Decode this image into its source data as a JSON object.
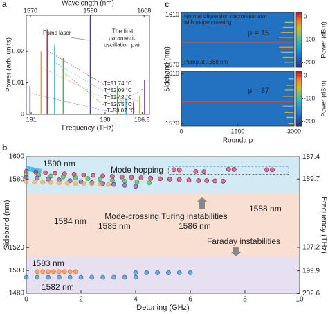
{
  "chart_data": [
    {
      "type": "stem",
      "panel": "a",
      "xlabel": "Frequency (THz)",
      "ylabel": "Power (arb. units)",
      "x2label": "Wavelength (nm)",
      "xlim": [
        191.2,
        186.2
      ],
      "xticks": [
        191,
        188,
        186.5
      ],
      "x2lim": [
        1568.6,
        1609.8
      ],
      "x2ticks": [
        1570,
        1590,
        1608
      ],
      "ylim": [
        0,
        0.0315
      ],
      "yticks": [
        0,
        0.01,
        0.02
      ],
      "annotations": [
        "The first",
        "parametric",
        "oscillation pair"
      ],
      "series": [
        {
          "name": "Pump laser",
          "color": "#3a4a8a",
          "x": [
            188.6
          ],
          "values": [
            0.031
          ]
        },
        {
          "name": "T=51.74 °C",
          "color": "#c0304a",
          "x": [
            190.35,
            186.85
          ],
          "values": [
            0.027,
            0.004
          ]
        },
        {
          "name": "T=52.09 °C",
          "color": "#39b6e0",
          "x": [
            190.05,
            187.15
          ],
          "values": [
            0.022,
            0.005
          ]
        },
        {
          "name": "T=52.42 °C",
          "color": "#f39c34",
          "x": [
            190.6,
            186.6
          ],
          "values": [
            0.02,
            0.006
          ]
        },
        {
          "name": "T=52.75 °C",
          "color": "#4caf50",
          "x": [
            189.7,
            187.5
          ],
          "values": [
            0.018,
            0.009
          ]
        },
        {
          "name": "T=53.07 °C",
          "color": "#7b4ea3",
          "x": [
            191.05,
            186.4
          ],
          "values": [
            0.009,
            0.011
          ]
        }
      ]
    },
    {
      "type": "heatmap",
      "panel": "c",
      "ylabel": "Sideband (nm)",
      "colorbar_label": "Power (dBm)",
      "notes": [
        "Normal dispersion microresonator",
        "with mode crossing"
      ],
      "mu_label": "μ = 15",
      "pump_label": "Pump at 1588 nm",
      "xlim": [
        0,
        3000
      ],
      "ylim": [
        1568,
        1612
      ],
      "yticks": [
        1610,
        1570
      ],
      "clim": [
        -220,
        20
      ],
      "cticks": [
        0,
        -100,
        -200
      ],
      "background": -170,
      "trace_wavelengths": [
        1588,
        1604,
        1600,
        1596,
        1592,
        1584,
        1580,
        1576,
        1572
      ],
      "trace_onsets": [
        0,
        2750,
        2700,
        2650,
        2600,
        2600,
        2650,
        2700,
        2750
      ],
      "trace_powers": [
        0,
        -60,
        -50,
        -40,
        -30,
        -30,
        -40,
        -50,
        -60
      ]
    },
    {
      "type": "heatmap",
      "xlabel": "Roundtrip",
      "colorbar_label": "Power (dBm)",
      "mu_label": "μ = 37",
      "xlim": [
        0,
        3000
      ],
      "xticks": [
        0,
        1500,
        3000
      ],
      "ylim": [
        1568,
        1612
      ],
      "yticks": [
        1610,
        1570
      ],
      "clim": [
        -220,
        20
      ],
      "cticks": [
        0,
        -100,
        -200
      ],
      "background": -170,
      "trace_wavelengths": [
        1588,
        1606,
        1601,
        1597,
        1592,
        1584,
        1579,
        1575,
        1570
      ],
      "trace_onsets": [
        0,
        2850,
        2800,
        2750,
        2700,
        2700,
        2750,
        2800,
        2850
      ],
      "trace_powers": [
        0,
        -60,
        -50,
        -40,
        -30,
        -30,
        -40,
        -50,
        -60
      ]
    },
    {
      "type": "scatter",
      "panel": "b",
      "xlabel": "Detuning (GHz)",
      "ylabel": "Sideband (nm)",
      "y2label": "Frequency (THz)",
      "xlim": [
        0,
        10
      ],
      "xticks": [
        0,
        2,
        4,
        6,
        8,
        10
      ],
      "ylim": [
        1480,
        1600
      ],
      "yticks": [
        1480,
        1500,
        1520,
        1580,
        1600
      ],
      "y2ticks": [
        187.4,
        189.7,
        197.2,
        199.9,
        202.6
      ],
      "regions": [
        {
          "from": 1568,
          "to": 1600,
          "color": "#d3e9f4"
        },
        {
          "from": 1512,
          "to": 1568,
          "color": "#f8dfd2"
        },
        {
          "from": 1480,
          "to": 1512,
          "color": "#e6e0f0"
        }
      ],
      "annotations": [
        "Mode hopping",
        "Mode-crossing Turing instabilities",
        "Faraday instabilities"
      ],
      "series": [
        {
          "name": "1590 nm",
          "color": "#4ab8e8",
          "x": [
            0.05,
            0.1,
            0.15,
            0.2,
            0.25,
            0.3,
            0.35,
            0.4,
            0.45,
            0.5
          ],
          "values": [
            1589.5,
            1589.3,
            1589,
            1588.8,
            1588.6,
            1588.3,
            1588,
            1587.8,
            1587.5,
            1587.3
          ]
        },
        {
          "name": "1588 nm",
          "color": "#b0264a",
          "x": [
            0,
            0.35,
            0.7,
            1.05,
            1.4,
            1.75,
            2.1,
            2.45,
            2.8,
            3.15,
            3.5,
            3.85,
            4.2,
            4.55,
            4.9,
            5.25,
            5.6,
            5.95,
            6.3,
            5.4,
            5.6,
            6.2,
            6.5,
            7.4,
            7.6,
            8.8,
            9.0,
            6.6,
            6.9,
            7.2
          ],
          "values": [
            1587,
            1586.5,
            1586,
            1585.5,
            1585,
            1584.5,
            1584,
            1583.5,
            1583,
            1582.6,
            1582.2,
            1581.8,
            1581.4,
            1581,
            1580.6,
            1580.2,
            1579.8,
            1579.4,
            1579,
            1588.5,
            1588.3,
            1587,
            1586.8,
            1588.8,
            1588.8,
            1588.5,
            1588.5,
            1579,
            1578.7,
            1578.5
          ]
        },
        {
          "name": "1586 nm",
          "color": "#3f9e3a",
          "x": [
            0,
            0.45,
            0.9,
            1.35,
            1.8,
            2.25,
            2.7,
            3.15,
            3.6,
            4.05,
            4.5
          ],
          "values": [
            1584.5,
            1583.8,
            1583,
            1582.3,
            1581.5,
            1580.8,
            1580,
            1579.3,
            1578.5,
            1577.8,
            1577
          ]
        },
        {
          "name": "1585 nm",
          "color": "#6a3d9a",
          "x": [
            0,
            0.4,
            0.8,
            1.2,
            1.6,
            2,
            2.4,
            2.8,
            3.2,
            3.6,
            4
          ],
          "values": [
            1582,
            1581.2,
            1580.4,
            1579.6,
            1578.8,
            1578,
            1577.2,
            1576.4,
            1575.6,
            1574.8,
            1574
          ]
        },
        {
          "name": "1584 nm",
          "color": "#f2a23a",
          "x": [
            0,
            0.3,
            0.6,
            0.9,
            1.2,
            1.5,
            1.8,
            2.1,
            2.4,
            2.7,
            3
          ],
          "values": [
            1578,
            1577.8,
            1577.5,
            1577.3,
            1577,
            1576.8,
            1576.5,
            1576.3,
            1576,
            1575.8,
            1575.5
          ]
        },
        {
          "name": "1583 nm",
          "color": "#ee7a2a",
          "x": [
            0.4,
            0.6,
            0.8,
            1.0,
            1.2,
            1.4,
            1.6,
            1.8
          ],
          "values": [
            1499,
            1499,
            1499,
            1499,
            1499,
            1499,
            1499,
            1499
          ]
        },
        {
          "name": "1582 nm",
          "color": "#2a7ab8",
          "x": [
            0,
            0.4,
            0.8,
            1.2,
            1.6,
            2,
            2.4,
            2.8,
            3.2,
            3.6,
            4,
            4.0,
            4.4,
            4.8,
            5.2,
            5.6,
            6.0
          ],
          "values": [
            1494,
            1494,
            1494,
            1494,
            1494,
            1494,
            1494,
            1494,
            1494,
            1494,
            1494,
            1498,
            1498,
            1498,
            1498,
            1498,
            1498
          ]
        }
      ]
    }
  ]
}
